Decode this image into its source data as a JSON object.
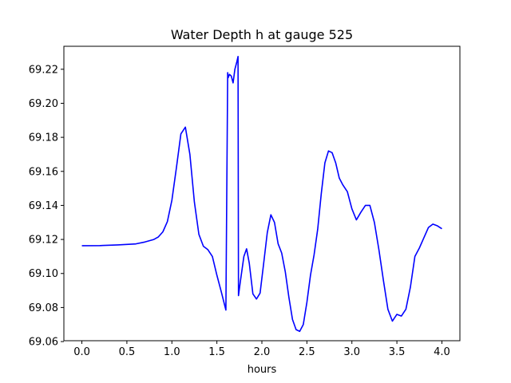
{
  "chart_data": {
    "type": "line",
    "title": "Water Depth h at gauge 525",
    "xlabel": "hours",
    "ylabel": "",
    "xlim": [
      -0.2,
      4.2
    ],
    "ylim": [
      69.0605,
      69.2335
    ],
    "x_ticks": [
      0.0,
      0.5,
      1.0,
      1.5,
      2.0,
      2.5,
      3.0,
      3.5,
      4.0
    ],
    "x_tick_labels": [
      "0.0",
      "0.5",
      "1.0",
      "1.5",
      "2.0",
      "2.5",
      "3.0",
      "3.5",
      "4.0"
    ],
    "y_ticks": [
      69.06,
      69.08,
      69.1,
      69.12,
      69.14,
      69.16,
      69.18,
      69.2,
      69.22
    ],
    "y_tick_labels": [
      "69.06",
      "69.08",
      "69.10",
      "69.12",
      "69.14",
      "69.16",
      "69.18",
      "69.20",
      "69.22"
    ],
    "grid": false,
    "series": [
      {
        "color": "#0000ff",
        "x": [
          0.0,
          0.2,
          0.4,
          0.6,
          0.7,
          0.8,
          0.85,
          0.9,
          0.95,
          1.0,
          1.05,
          1.1,
          1.15,
          1.2,
          1.25,
          1.3,
          1.35,
          1.4,
          1.45,
          1.5,
          1.55,
          1.6,
          1.62,
          1.625,
          1.64,
          1.66,
          1.68,
          1.7,
          1.72,
          1.735,
          1.74,
          1.76,
          1.8,
          1.83,
          1.86,
          1.9,
          1.94,
          1.98,
          2.02,
          2.06,
          2.1,
          2.14,
          2.18,
          2.22,
          2.26,
          2.3,
          2.34,
          2.38,
          2.42,
          2.46,
          2.5,
          2.54,
          2.58,
          2.62,
          2.66,
          2.7,
          2.74,
          2.78,
          2.82,
          2.86,
          2.9,
          2.95,
          3.0,
          3.05,
          3.1,
          3.15,
          3.2,
          3.25,
          3.3,
          3.35,
          3.4,
          3.45,
          3.5,
          3.55,
          3.6,
          3.65,
          3.7,
          3.75,
          3.8,
          3.85,
          3.9,
          3.95,
          4.0
        ],
        "values": [
          69.1163,
          69.1164,
          69.1168,
          69.1174,
          69.1185,
          69.12,
          69.1215,
          69.1245,
          69.1305,
          69.143,
          69.162,
          69.182,
          69.186,
          69.17,
          69.142,
          69.123,
          69.116,
          69.114,
          69.11,
          69.099,
          69.089,
          69.0785,
          69.218,
          69.215,
          69.217,
          69.216,
          69.212,
          69.22,
          69.224,
          69.2275,
          69.087,
          69.095,
          69.11,
          69.1145,
          69.106,
          69.088,
          69.085,
          69.0885,
          69.106,
          69.124,
          69.1345,
          69.13,
          69.1175,
          69.112,
          69.101,
          69.086,
          69.073,
          69.067,
          69.066,
          69.07,
          69.083,
          69.099,
          69.111,
          69.126,
          69.147,
          69.165,
          69.172,
          69.171,
          69.165,
          69.156,
          69.152,
          69.148,
          69.138,
          69.1315,
          69.136,
          69.14,
          69.14,
          69.13,
          69.114,
          69.096,
          69.079,
          69.072,
          69.076,
          69.075,
          69.079,
          69.092,
          69.11,
          69.115,
          69.121,
          69.127,
          69.129,
          69.128,
          69.1263
        ]
      }
    ]
  }
}
